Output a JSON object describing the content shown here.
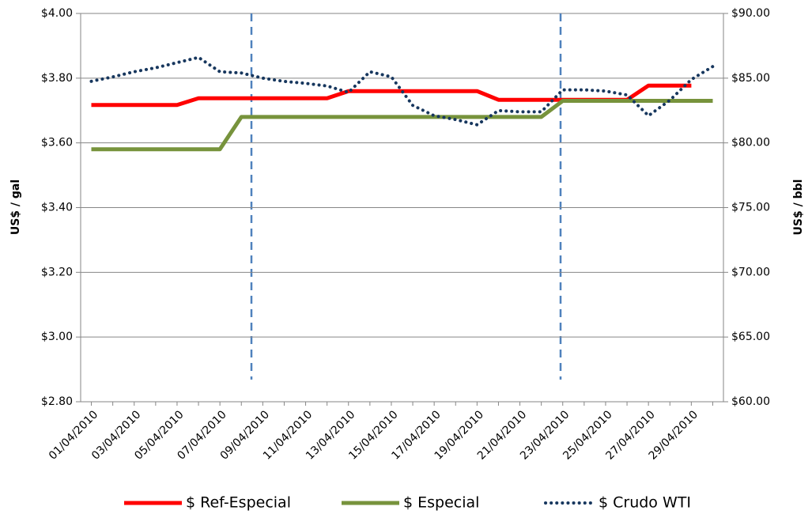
{
  "chart_data": {
    "type": "line",
    "categories": [
      "01/04/2010",
      null,
      "03/04/2010",
      null,
      "05/04/2010",
      null,
      "07/04/2010",
      null,
      "09/04/2010",
      null,
      "11/04/2010",
      null,
      "13/04/2010",
      null,
      "15/04/2010",
      null,
      "17/04/2010",
      null,
      "19/04/2010",
      null,
      "21/04/2010",
      null,
      "23/04/2010",
      null,
      "25/04/2010",
      null,
      "27/04/2010",
      null,
      "29/04/2010",
      null
    ],
    "series": [
      {
        "name": "$ Ref-Especial",
        "color": "#ff0000",
        "values": [
          3.717,
          3.717,
          3.717,
          3.717,
          3.717,
          3.738,
          3.738,
          3.738,
          3.738,
          3.738,
          3.738,
          3.738,
          3.76,
          3.76,
          3.76,
          3.76,
          3.76,
          3.76,
          3.76,
          3.733,
          3.733,
          3.733,
          3.733,
          3.733,
          3.733,
          3.733,
          3.777,
          3.777,
          3.777,
          null
        ]
      },
      {
        "name": "$ Especial",
        "color": "#77933c",
        "values": [
          3.58,
          3.58,
          3.58,
          3.58,
          3.58,
          3.58,
          3.58,
          3.68,
          3.68,
          3.68,
          3.68,
          3.68,
          3.68,
          3.68,
          3.68,
          3.68,
          3.68,
          3.68,
          3.68,
          3.68,
          3.68,
          3.68,
          3.73,
          3.73,
          3.73,
          3.73,
          3.73,
          3.73,
          3.73,
          3.73
        ]
      },
      {
        "name": "$ Crudo WTI",
        "color": "#17375e",
        "axis": "y2",
        "values": [
          84.76,
          85.1,
          85.5,
          85.8,
          86.2,
          86.6,
          85.5,
          85.4,
          85.0,
          84.75,
          84.6,
          84.4,
          83.9,
          85.5,
          85.1,
          82.9,
          82.1,
          81.8,
          81.4,
          82.5,
          82.4,
          82.4,
          84.1,
          84.1,
          84.0,
          83.7,
          82.1,
          83.3,
          84.9,
          85.9
        ]
      }
    ],
    "ylabel": "US$ / gal",
    "y2label": "US$ / bbl",
    "ylim": [
      2.8,
      4.0
    ],
    "yticks": [
      {
        "value": 2.8,
        "label": "$2.80"
      },
      {
        "value": 3.0,
        "label": "$3.00"
      },
      {
        "value": 3.2,
        "label": "$3.20"
      },
      {
        "value": 3.4,
        "label": "$3.40"
      },
      {
        "value": 3.6,
        "label": "$3.60"
      },
      {
        "value": 3.8,
        "label": "$3.80"
      },
      {
        "value": 4.0,
        "label": "$4.00"
      }
    ],
    "y2lim": [
      60,
      90
    ],
    "y2ticks": [
      {
        "value": 60,
        "label": "$60.00"
      },
      {
        "value": 65,
        "label": "$65.00"
      },
      {
        "value": 70,
        "label": "$70.00"
      },
      {
        "value": 75,
        "label": "$75.00"
      },
      {
        "value": 80,
        "label": "$80.00"
      },
      {
        "value": 85,
        "label": "$85.00"
      },
      {
        "value": 90,
        "label": "$90.00"
      }
    ],
    "grid": true,
    "legend": "bottom"
  }
}
